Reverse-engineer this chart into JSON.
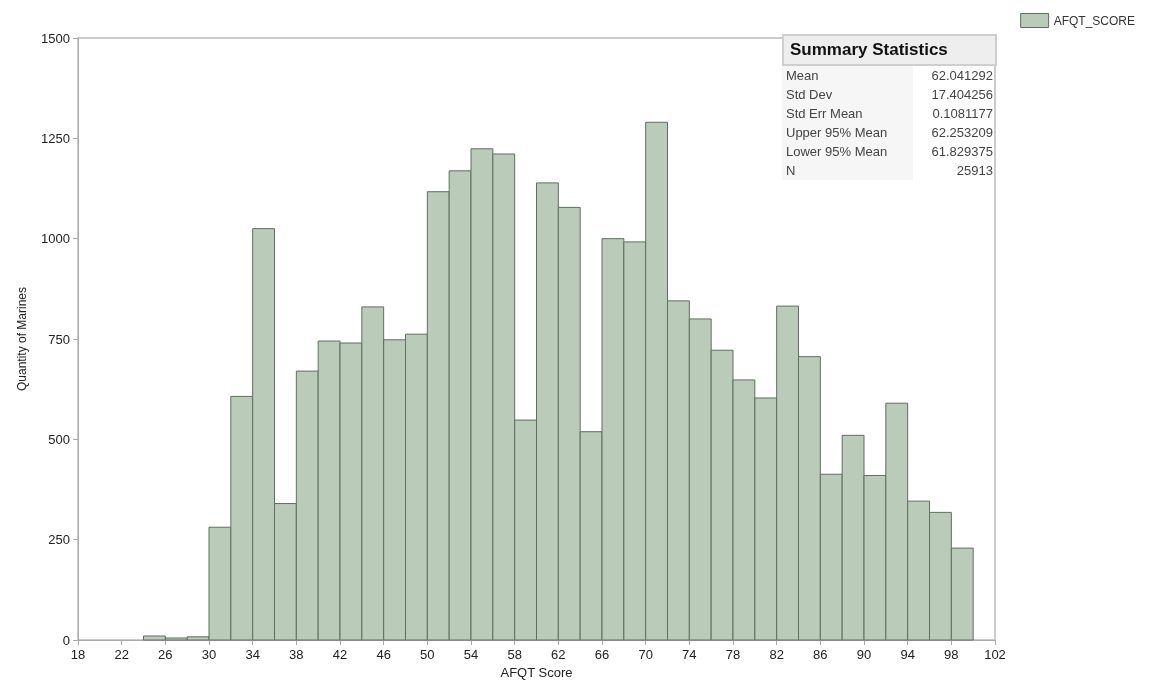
{
  "chart_data": {
    "type": "histogram",
    "xlabel": "AFQT Score",
    "ylabel": "Quantity of Marines",
    "bins": [
      24,
      26,
      28,
      30,
      32,
      34,
      36,
      38,
      40,
      42,
      44,
      46,
      48,
      50,
      52,
      54,
      56,
      58,
      60,
      62,
      64,
      66,
      68,
      70,
      72,
      74,
      76,
      78,
      80,
      82,
      84,
      86,
      88,
      90,
      92,
      94,
      96,
      98,
      100
    ],
    "series": [
      {
        "name": "AFQT_SCORE",
        "color": "#bacbba",
        "values": [
          10,
          5,
          8,
          281,
          607,
          1025,
          340,
          670,
          745,
          740,
          830,
          748,
          762,
          1117,
          1169,
          1224,
          1211,
          548,
          1139,
          1078,
          519,
          1000,
          992,
          1290,
          845,
          800,
          722,
          648,
          603,
          832,
          706,
          413,
          510,
          410,
          590,
          346,
          318,
          229
        ]
      }
    ],
    "xlim": [
      18,
      102
    ],
    "xticks": [
      18,
      22,
      26,
      30,
      34,
      38,
      42,
      46,
      50,
      54,
      58,
      62,
      66,
      70,
      74,
      78,
      82,
      86,
      90,
      94,
      98,
      102
    ],
    "ylim": [
      0,
      1500
    ],
    "yticks": [
      0,
      250,
      500,
      750,
      1000,
      1250,
      1500
    ],
    "grid": false,
    "legend": "top right",
    "annotations": [
      "Summary Statistics",
      "Mean",
      "62.041292",
      "Std Dev",
      "17.404256",
      "Std Err Mean",
      "0.1081177",
      "Upper 95% Mean",
      "62.253209",
      "Lower 95% Mean",
      "61.829375",
      "N",
      "25913"
    ]
  }
}
